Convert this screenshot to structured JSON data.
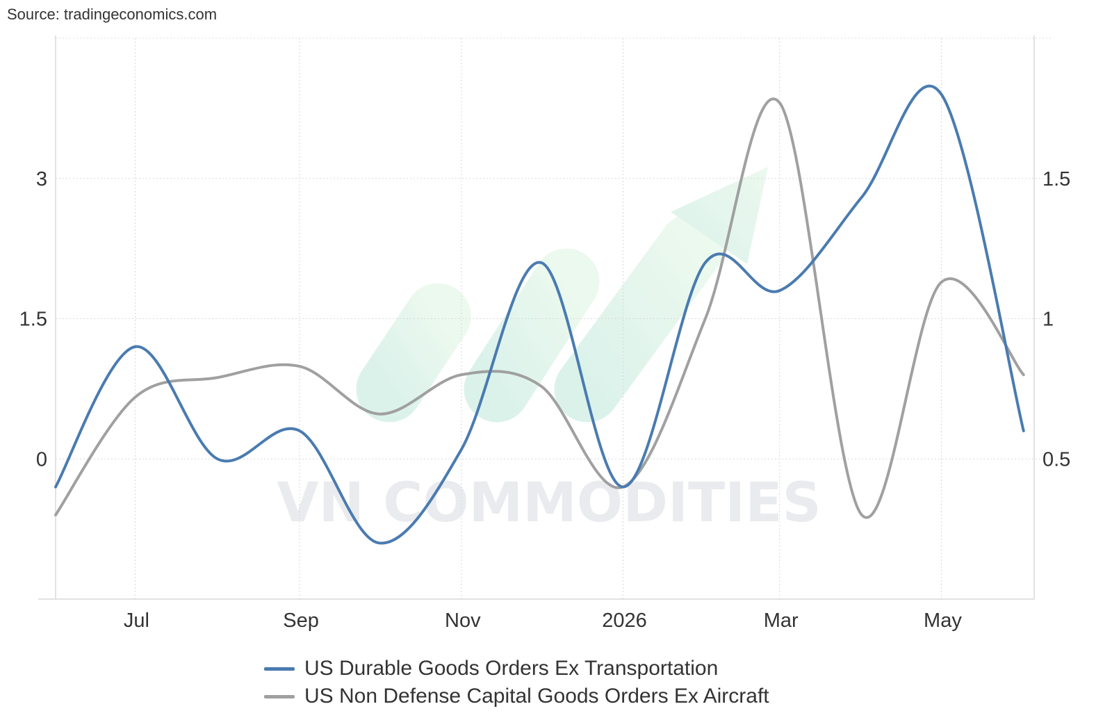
{
  "source": "Source: tradingeconomics.com",
  "watermark": "VN COMMODITIES",
  "chart_data": {
    "type": "line",
    "title": "",
    "xlabel": "",
    "ylabel": "",
    "x": [
      "2025-06-01",
      "2025-07-01",
      "2025-08-01",
      "2025-09-01",
      "2025-10-01",
      "2025-11-01",
      "2025-12-01",
      "2026-01-01",
      "2026-02-01",
      "2026-03-01",
      "2026-04-01",
      "2026-05-01",
      "2026-06-01"
    ],
    "x_tick_labels": [
      "Jul",
      "Sep",
      "Nov",
      "2026",
      "Mar",
      "May"
    ],
    "x_tick_dates": [
      "2025-07-01",
      "2025-09-01",
      "2025-11-01",
      "2026-01-01",
      "2026-03-01",
      "2026-05-01"
    ],
    "x_range": [
      "2025-06-01",
      "2026-06-05"
    ],
    "y_left": {
      "ticks": [
        0,
        1.5,
        3
      ],
      "range": [
        -1.5,
        4.5
      ]
    },
    "y_right": {
      "ticks": [
        0.5,
        1,
        1.5
      ],
      "range": [
        0.0,
        2.0
      ]
    },
    "grid": true,
    "legend_position": "bottom",
    "series": [
      {
        "name": "US Durable Goods Orders Ex Transportation",
        "axis": "left",
        "color": "#4a7bb0",
        "values": [
          -0.3,
          1.2,
          0.0,
          0.3,
          -0.9,
          0.1,
          2.1,
          -0.3,
          2.1,
          1.8,
          2.8,
          3.9,
          0.3
        ]
      },
      {
        "name": "US Non Defense Capital Goods Orders Ex Aircraft",
        "axis": "right",
        "color": "#a0a0a0",
        "values": [
          0.3,
          0.72,
          0.79,
          0.83,
          0.66,
          0.8,
          0.76,
          0.4,
          1.0,
          1.77,
          0.3,
          1.13,
          0.8
        ]
      }
    ]
  }
}
